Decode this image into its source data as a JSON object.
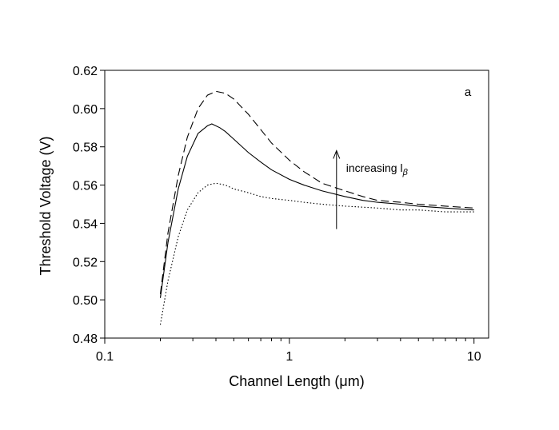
{
  "chart_data": {
    "type": "line",
    "panel_label": "a",
    "xlabel": "Channel Length (μm)",
    "ylabel": "Threshold Voltage (V)",
    "xscale": "log",
    "xlim": [
      0.1,
      12
    ],
    "ylim": [
      0.48,
      0.62
    ],
    "x_ticks": [
      0.1,
      1,
      10
    ],
    "x_tick_labels": [
      "0.1",
      "1",
      "10"
    ],
    "y_ticks": [
      0.48,
      0.5,
      0.52,
      0.54,
      0.56,
      0.58,
      0.6,
      0.62
    ],
    "y_tick_labels": [
      "0.48",
      "0.50",
      "0.52",
      "0.54",
      "0.56",
      "0.58",
      "0.60",
      "0.62"
    ],
    "grid": false,
    "legend": "none",
    "annotation": {
      "text": "increasing l",
      "subscript": "β",
      "arrow_x": 1.8,
      "arrow_from_y": 0.537,
      "arrow_to_y": 0.578
    },
    "series": [
      {
        "style": "dashed",
        "x": [
          0.2,
          0.22,
          0.25,
          0.28,
          0.32,
          0.36,
          0.4,
          0.45,
          0.5,
          0.6,
          0.7,
          0.8,
          1.0,
          1.2,
          1.5,
          2.0,
          2.5,
          3.0,
          4.0,
          5.0,
          7.0,
          10.0
        ],
        "y": [
          0.503,
          0.535,
          0.565,
          0.585,
          0.6,
          0.607,
          0.609,
          0.608,
          0.605,
          0.597,
          0.589,
          0.582,
          0.573,
          0.567,
          0.561,
          0.557,
          0.554,
          0.552,
          0.551,
          0.55,
          0.549,
          0.548
        ]
      },
      {
        "style": "solid",
        "x": [
          0.2,
          0.22,
          0.25,
          0.28,
          0.32,
          0.36,
          0.38,
          0.42,
          0.45,
          0.5,
          0.6,
          0.7,
          0.8,
          1.0,
          1.2,
          1.5,
          2.0,
          2.5,
          3.0,
          4.0,
          5.0,
          7.0,
          10.0
        ],
        "y": [
          0.501,
          0.53,
          0.558,
          0.575,
          0.587,
          0.591,
          0.592,
          0.59,
          0.588,
          0.584,
          0.577,
          0.572,
          0.568,
          0.563,
          0.56,
          0.557,
          0.554,
          0.552,
          0.551,
          0.55,
          0.549,
          0.548,
          0.547
        ]
      },
      {
        "style": "dotted",
        "x": [
          0.2,
          0.22,
          0.25,
          0.28,
          0.32,
          0.36,
          0.4,
          0.45,
          0.5,
          0.6,
          0.7,
          0.8,
          1.0,
          1.2,
          1.5,
          2.0,
          3.0,
          4.0,
          5.0,
          7.0,
          10.0
        ],
        "y": [
          0.487,
          0.51,
          0.533,
          0.547,
          0.556,
          0.56,
          0.561,
          0.56,
          0.558,
          0.556,
          0.554,
          0.553,
          0.552,
          0.551,
          0.55,
          0.549,
          0.548,
          0.547,
          0.547,
          0.546,
          0.546
        ]
      }
    ]
  }
}
